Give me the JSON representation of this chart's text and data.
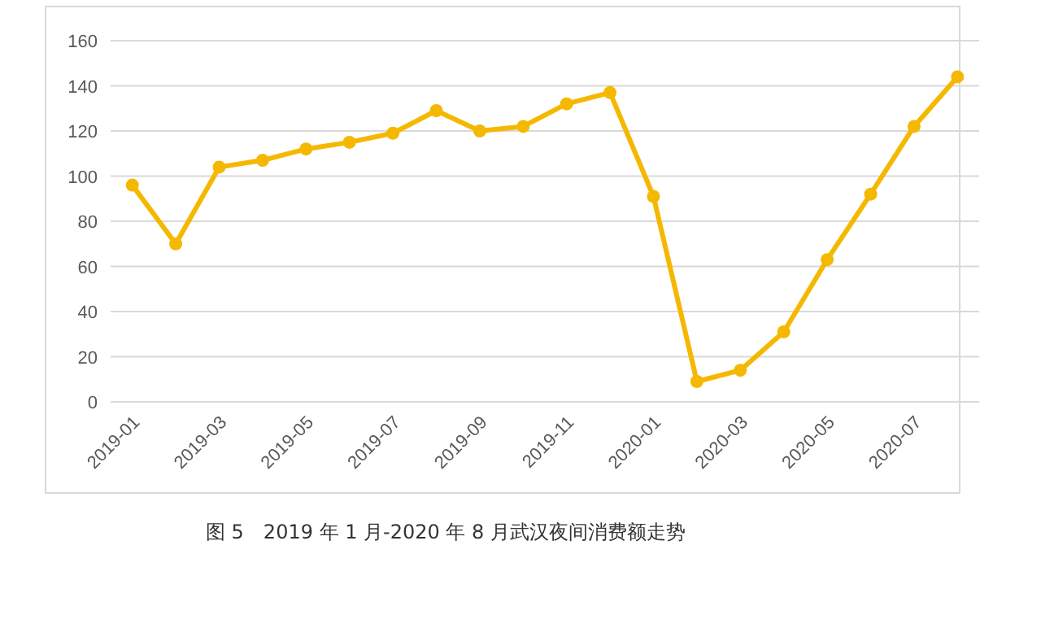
{
  "chart_data": {
    "type": "line",
    "categories": [
      "2019-01",
      null,
      "2019-03",
      null,
      "2019-05",
      null,
      "2019-07",
      null,
      "2019-09",
      null,
      "2019-11",
      null,
      "2020-01",
      null,
      "2020-03",
      null,
      "2020-05",
      null,
      "2020-07",
      null
    ],
    "series": [
      {
        "color": "#f5b800",
        "values": [
          96,
          70,
          104,
          107,
          112,
          115,
          119,
          129,
          120,
          122,
          132,
          137,
          91,
          9,
          14,
          31,
          63,
          92,
          122,
          144
        ]
      }
    ],
    "ylim": [
      0,
      160
    ],
    "yticks": [
      0,
      20,
      40,
      60,
      80,
      100,
      120,
      140,
      160
    ],
    "grid": "y",
    "marker": "circle",
    "line_style": "solid",
    "annotations": [
      "图 5　2019 年 1 月-2020 年 8 月武汉夜间消费额走势"
    ]
  }
}
